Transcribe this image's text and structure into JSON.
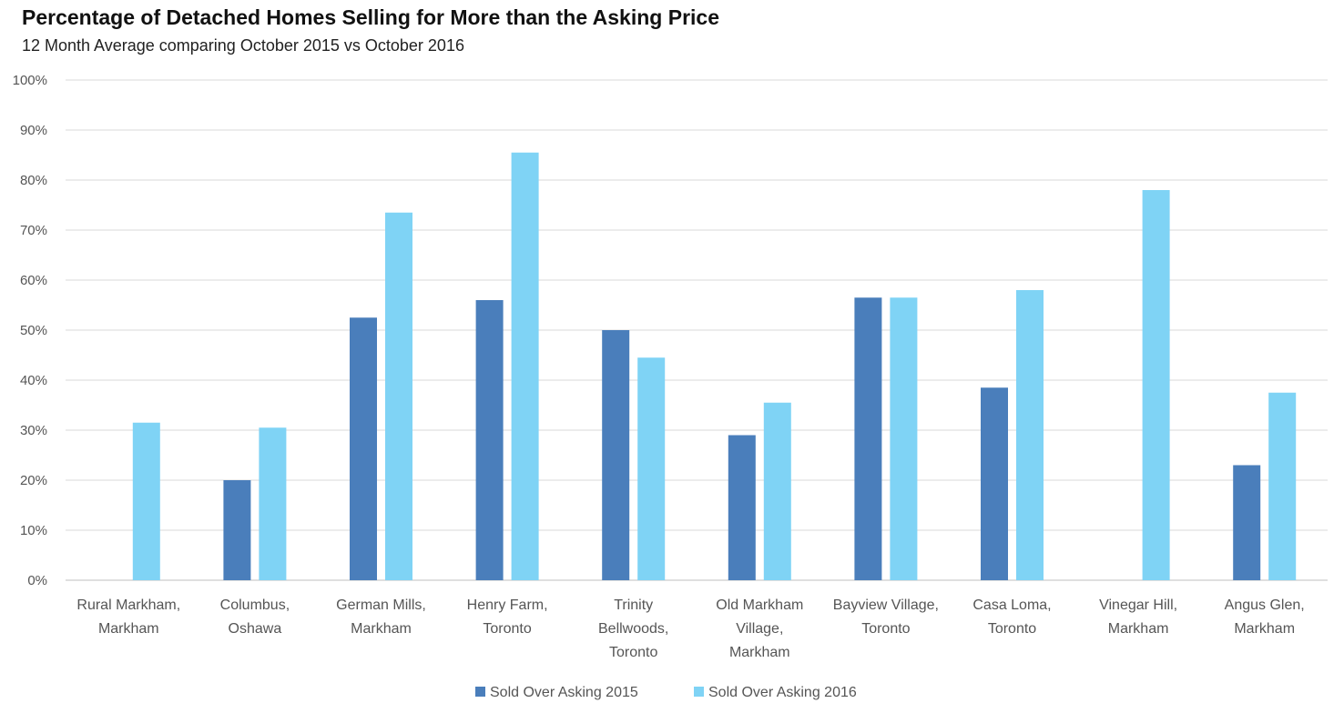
{
  "chart_data": {
    "type": "bar",
    "title": "Percentage of Detached Homes Selling for More than the Asking Price",
    "subtitle": "12 Month Average comparing October 2015 vs October 2016",
    "categories": [
      [
        "Rural Markham,",
        "Markham"
      ],
      [
        "Columbus,",
        "Oshawa"
      ],
      [
        "German Mills,",
        "Markham"
      ],
      [
        "Henry Farm,",
        "Toronto"
      ],
      [
        "Trinity",
        "Bellwoods,",
        "Toronto"
      ],
      [
        "Old Markham",
        "Village,",
        "Markham"
      ],
      [
        "Bayview Village,",
        "Toronto"
      ],
      [
        "Casa Loma,",
        "Toronto"
      ],
      [
        "Vinegar Hill,",
        "Markham"
      ],
      [
        "Angus Glen,",
        "Markham"
      ]
    ],
    "series": [
      {
        "name": "Sold Over Asking 2015",
        "color": "#4a7ebb",
        "values": [
          0,
          20,
          52.5,
          56,
          50,
          29,
          56.5,
          38.5,
          0,
          23
        ]
      },
      {
        "name": "Sold Over Asking 2016",
        "color": "#7fd3f5",
        "values": [
          31.5,
          30.5,
          73.5,
          85.5,
          44.5,
          35.5,
          56.5,
          58,
          78,
          37.5
        ]
      }
    ],
    "ylim": [
      0,
      100
    ],
    "yticks": [
      "0%",
      "10%",
      "20%",
      "30%",
      "40%",
      "50%",
      "60%",
      "70%",
      "80%",
      "90%",
      "100%"
    ],
    "grid": true,
    "legend": "bottom-center"
  }
}
